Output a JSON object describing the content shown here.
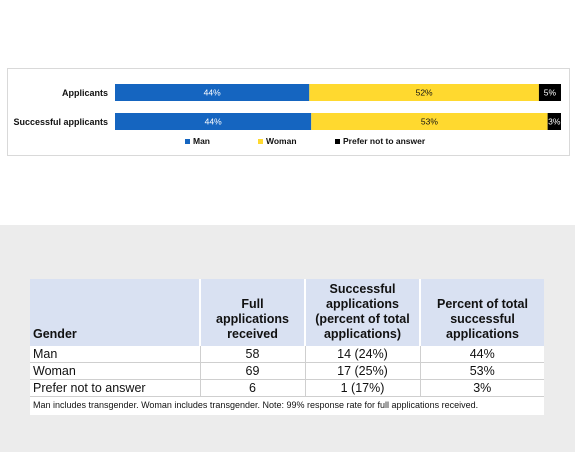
{
  "chart_data": {
    "type": "bar",
    "orientation": "horizontal",
    "stacked": true,
    "percent_scale": true,
    "categories": [
      "Applicants",
      "Successful applicants"
    ],
    "series": [
      {
        "name": "Man",
        "color": "#1565c0",
        "values": [
          44,
          44
        ],
        "labels": [
          "44%",
          "44%"
        ]
      },
      {
        "name": "Woman",
        "color": "#ffd92f",
        "values": [
          52,
          53
        ],
        "labels": [
          "52%",
          "53%"
        ]
      },
      {
        "name": "Prefer not to answer",
        "color": "#000000",
        "values": [
          5,
          3
        ],
        "labels": [
          "5%",
          "3%"
        ]
      }
    ],
    "legend_position": "bottom",
    "grid": false
  },
  "table": {
    "headers": [
      "Gender",
      "Full applications received",
      "Successful applications (percent of total applications)",
      "Percent of total successful applications"
    ],
    "rows": [
      [
        "Man",
        "58",
        "14 (24%)",
        "44%"
      ],
      [
        "Woman",
        "69",
        "17 (25%)",
        "53%"
      ],
      [
        "Prefer not to answer",
        "6",
        "1 (17%)",
        "3%"
      ]
    ],
    "footnote": "Man includes transgender. Woman includes transgender. Note: 99% response rate for full applications received."
  }
}
